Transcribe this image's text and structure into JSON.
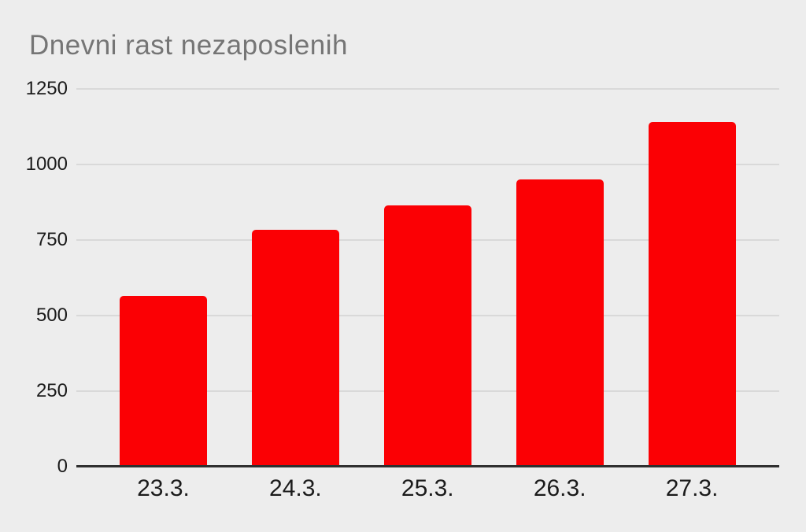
{
  "chart": {
    "title": "Dnevni rast nezaposlenih"
  },
  "chart_data": {
    "type": "bar",
    "title": "Dnevni rast nezaposlenih",
    "categories": [
      "23.3.",
      "24.3.",
      "25.3.",
      "26.3.",
      "27.3."
    ],
    "values": [
      565,
      785,
      865,
      950,
      1140
    ],
    "xlabel": "",
    "ylabel": "",
    "ylim": [
      0,
      1250
    ],
    "yticks": [
      0,
      250,
      500,
      750,
      1000,
      1250
    ],
    "grid": true,
    "legend": false,
    "colors": {
      "bar": "#fb0004",
      "background": "#ededed",
      "title_text": "#757575",
      "axis_label_text": "#1b1b1b",
      "gridline": "#d9d9d9",
      "zero_axis_line": "#2f2f2f"
    }
  }
}
